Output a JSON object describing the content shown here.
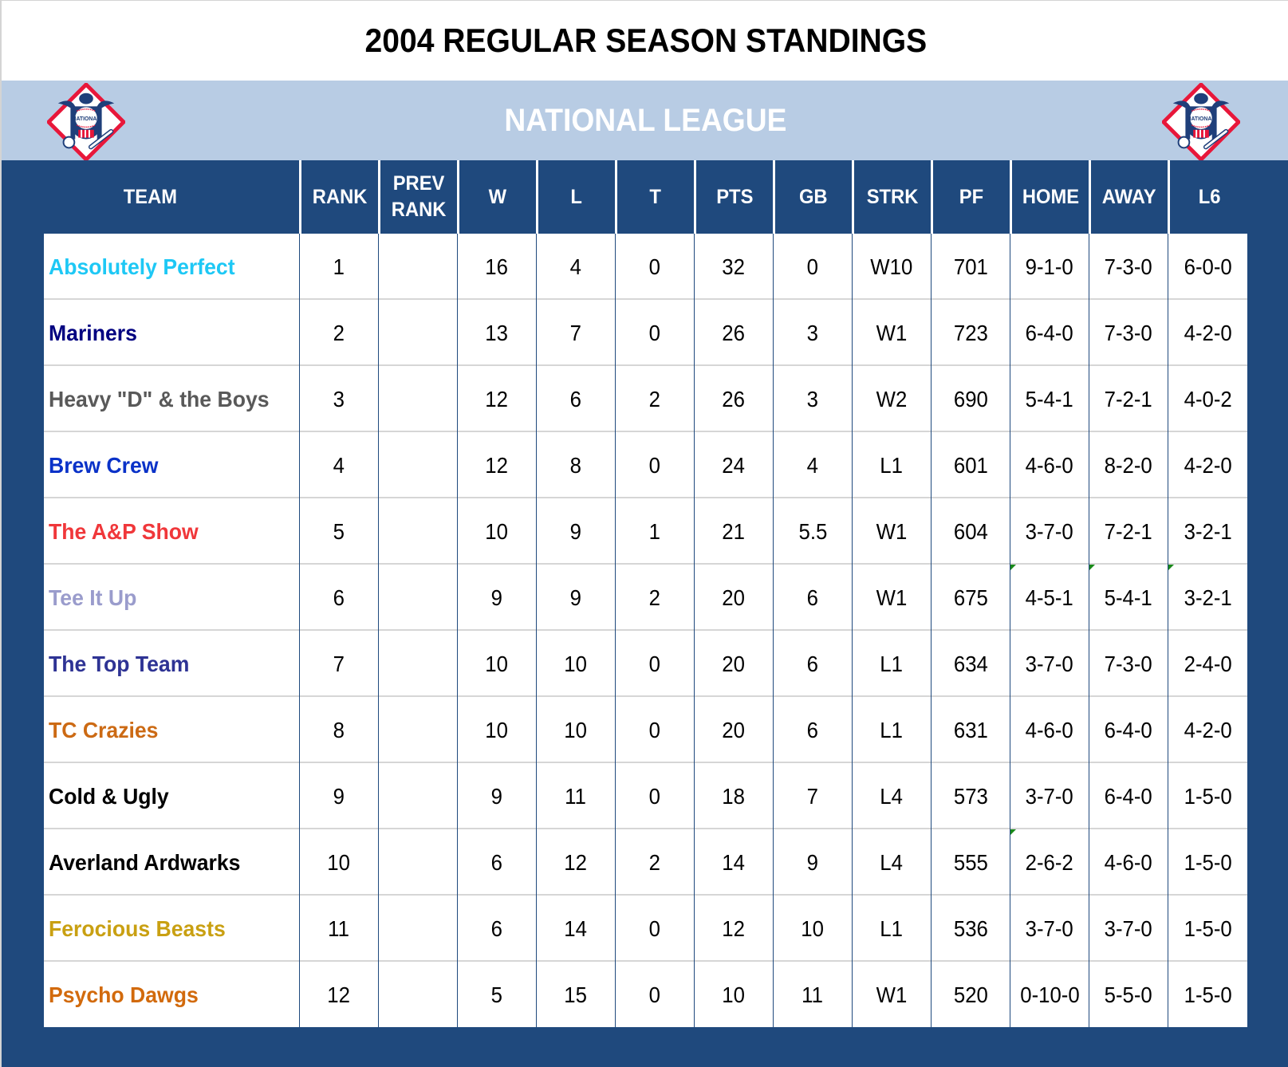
{
  "title": "2004 REGULAR SEASON STANDINGS",
  "league": {
    "name": "NATIONAL LEAGUE",
    "logo_icon": "national-league-logo",
    "band_color": "#b8cce4",
    "header_color": "#1f497d"
  },
  "columns": [
    {
      "key": "team",
      "label": "TEAM"
    },
    {
      "key": "rank",
      "label": "RANK"
    },
    {
      "key": "prev_rank",
      "label": "PREV RANK",
      "line1": "PREV",
      "line2": "RANK"
    },
    {
      "key": "w",
      "label": "W"
    },
    {
      "key": "l",
      "label": "L"
    },
    {
      "key": "t",
      "label": "T"
    },
    {
      "key": "pts",
      "label": "PTS"
    },
    {
      "key": "gb",
      "label": "GB"
    },
    {
      "key": "strk",
      "label": "STRK"
    },
    {
      "key": "pf",
      "label": "PF"
    },
    {
      "key": "home",
      "label": "HOME"
    },
    {
      "key": "away",
      "label": "AWAY"
    },
    {
      "key": "l6",
      "label": "L6"
    }
  ],
  "rows": [
    {
      "team": "Absolutely Perfect",
      "color": "#1ec8f5",
      "rank": "1",
      "prev_rank": "",
      "w": "16",
      "l": "4",
      "t": "0",
      "pts": "32",
      "gb": "0",
      "strk": "W10",
      "pf": "701",
      "home": "9-1-0",
      "away": "7-3-0",
      "l6": "6-0-0",
      "markers": []
    },
    {
      "team": "Mariners",
      "color": "#000080",
      "rank": "2",
      "prev_rank": "",
      "w": "13",
      "l": "7",
      "t": "0",
      "pts": "26",
      "gb": "3",
      "strk": "W1",
      "pf": "723",
      "home": "6-4-0",
      "away": "7-3-0",
      "l6": "4-2-0",
      "markers": []
    },
    {
      "team": "Heavy \"D\" & the Boys",
      "color": "#595959",
      "rank": "3",
      "prev_rank": "",
      "w": "12",
      "l": "6",
      "t": "2",
      "pts": "26",
      "gb": "3",
      "strk": "W2",
      "pf": "690",
      "home": "5-4-1",
      "away": "7-2-1",
      "l6": "4-0-2",
      "markers": []
    },
    {
      "team": "Brew Crew",
      "color": "#0a32c8",
      "rank": "4",
      "prev_rank": "",
      "w": "12",
      "l": "8",
      "t": "0",
      "pts": "24",
      "gb": "4",
      "strk": "L1",
      "pf": "601",
      "home": "4-6-0",
      "away": "8-2-0",
      "l6": "4-2-0",
      "markers": []
    },
    {
      "team": "The A&P Show",
      "color": "#f0373a",
      "rank": "5",
      "prev_rank": "",
      "w": "10",
      "l": "9",
      "t": "1",
      "pts": "21",
      "gb": "5.5",
      "strk": "W1",
      "pf": "604",
      "home": "3-7-0",
      "away": "7-2-1",
      "l6": "3-2-1",
      "markers": []
    },
    {
      "team": "Tee It Up",
      "color": "#9a9ccc",
      "rank": "6",
      "prev_rank": "",
      "w": "9",
      "l": "9",
      "t": "2",
      "pts": "20",
      "gb": "6",
      "strk": "W1",
      "pf": "675",
      "home": "4-5-1",
      "away": "5-4-1",
      "l6": "3-2-1",
      "markers": [
        "home",
        "away",
        "l6"
      ]
    },
    {
      "team": "The Top Team",
      "color": "#2e3394",
      "rank": "7",
      "prev_rank": "",
      "w": "10",
      "l": "10",
      "t": "0",
      "pts": "20",
      "gb": "6",
      "strk": "L1",
      "pf": "634",
      "home": "3-7-0",
      "away": "7-3-0",
      "l6": "2-4-0",
      "markers": []
    },
    {
      "team": "TC Crazies",
      "color": "#cc6a14",
      "rank": "8",
      "prev_rank": "",
      "w": "10",
      "l": "10",
      "t": "0",
      "pts": "20",
      "gb": "6",
      "strk": "L1",
      "pf": "631",
      "home": "4-6-0",
      "away": "6-4-0",
      "l6": "4-2-0",
      "markers": []
    },
    {
      "team": "Cold & Ugly",
      "color": "#000000",
      "rank": "9",
      "prev_rank": "",
      "w": "9",
      "l": "11",
      "t": "0",
      "pts": "18",
      "gb": "7",
      "strk": "L4",
      "pf": "573",
      "home": "3-7-0",
      "away": "6-4-0",
      "l6": "1-5-0",
      "markers": []
    },
    {
      "team": "Averland Ardwarks",
      "color": "#000000",
      "rank": "10",
      "prev_rank": "",
      "w": "6",
      "l": "12",
      "t": "2",
      "pts": "14",
      "gb": "9",
      "strk": "L4",
      "pf": "555",
      "home": "2-6-2",
      "away": "4-6-0",
      "l6": "1-5-0",
      "markers": [
        "home"
      ]
    },
    {
      "team": "Ferocious Beasts",
      "color": "#c9a012",
      "rank": "11",
      "prev_rank": "",
      "w": "6",
      "l": "14",
      "t": "0",
      "pts": "12",
      "gb": "10",
      "strk": "L1",
      "pf": "536",
      "home": "3-7-0",
      "away": "3-7-0",
      "l6": "1-5-0",
      "markers": []
    },
    {
      "team": "Psycho Dawgs",
      "color": "#d26a0c",
      "rank": "12",
      "prev_rank": "",
      "w": "5",
      "l": "15",
      "t": "0",
      "pts": "10",
      "gb": "11",
      "strk": "W1",
      "pf": "520",
      "home": "0-10-0",
      "away": "5-5-0",
      "l6": "1-5-0",
      "markers": []
    }
  ]
}
